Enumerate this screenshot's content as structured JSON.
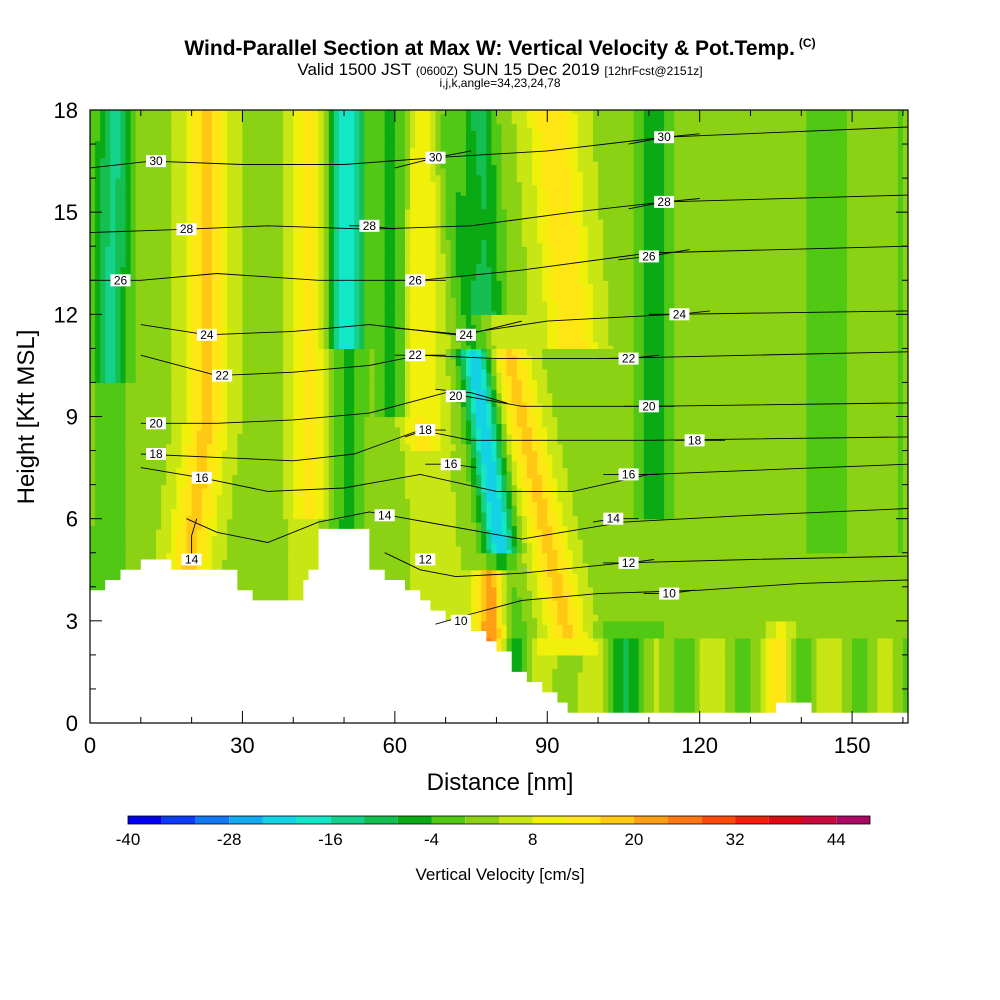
{
  "header": {
    "title": "Wind-Parallel Section at Max W: Vertical Velocity & Pot.Temp.",
    "copyright": "(C)",
    "valid_pre": "Valid 1500 JST",
    "valid_utc": "(0600Z)",
    "valid_date": "SUN 15 Dec 2019",
    "forecast": "[12hrFcst@2151z]",
    "section_info": "i,j,k,angle=34,23,24,78"
  },
  "chart_data": {
    "type": "heatmap",
    "xlabel": "Distance [nm]",
    "ylabel": "Height [Kft MSL]",
    "xlim": [
      0,
      161
    ],
    "ylim": [
      0,
      18
    ],
    "xticks": [
      0,
      30,
      60,
      90,
      120,
      150
    ],
    "yticks": [
      0,
      3,
      6,
      9,
      12,
      15,
      18
    ],
    "colorbar": {
      "label": "Vertical Velocity [cm/s]",
      "min": -40,
      "max": 48,
      "step": 4,
      "tick_labels": [
        -40,
        -28,
        -16,
        -4,
        8,
        20,
        32,
        44
      ],
      "colors": [
        "#0000ee",
        "#0a3cf5",
        "#1478f5",
        "#14aaf0",
        "#14d2e6",
        "#14e6c8",
        "#14d28c",
        "#14be50",
        "#0aaa14",
        "#50c814",
        "#8cd214",
        "#c8e614",
        "#f0f00a",
        "#ffe614",
        "#ffc814",
        "#ffa014",
        "#ff7814",
        "#ff4b0a",
        "#f01e0a",
        "#dc0a14",
        "#c80a3c",
        "#aa0a64",
        "#8c0a82"
      ]
    },
    "terrain_kft": [
      [
        0,
        3.9
      ],
      [
        3,
        3.9
      ],
      [
        3,
        4.2
      ],
      [
        6,
        4.2
      ],
      [
        6,
        4.5
      ],
      [
        10,
        4.5
      ],
      [
        10,
        4.8
      ],
      [
        16,
        4.8
      ],
      [
        16,
        4.5
      ],
      [
        29,
        4.5
      ],
      [
        29,
        3.9
      ],
      [
        32,
        3.9
      ],
      [
        32,
        3.6
      ],
      [
        42,
        3.6
      ],
      [
        42,
        4.2
      ],
      [
        43,
        4.2
      ],
      [
        43,
        4.5
      ],
      [
        45,
        4.5
      ],
      [
        45,
        5.7
      ],
      [
        55,
        5.7
      ],
      [
        55,
        4.5
      ],
      [
        58,
        4.5
      ],
      [
        58,
        4.2
      ],
      [
        62,
        4.2
      ],
      [
        62,
        3.9
      ],
      [
        65,
        3.9
      ],
      [
        65,
        3.6
      ],
      [
        67,
        3.6
      ],
      [
        67,
        3.3
      ],
      [
        70,
        3.3
      ],
      [
        70,
        3.0
      ],
      [
        75,
        3.0
      ],
      [
        75,
        2.7
      ],
      [
        78,
        2.7
      ],
      [
        78,
        2.4
      ],
      [
        80,
        2.4
      ],
      [
        80,
        2.1
      ],
      [
        83,
        2.1
      ],
      [
        83,
        1.5
      ],
      [
        86,
        1.5
      ],
      [
        86,
        1.2
      ],
      [
        89,
        1.2
      ],
      [
        89,
        0.9
      ],
      [
        92,
        0.9
      ],
      [
        92,
        0.6
      ],
      [
        94,
        0.6
      ],
      [
        94,
        0.3
      ],
      [
        135,
        0.3
      ],
      [
        135,
        0.6
      ],
      [
        142,
        0.6
      ],
      [
        142,
        0.3
      ],
      [
        161,
        0.3
      ]
    ],
    "theta_contours": [
      {
        "label": "10",
        "points": [
          [
            68,
            2.9
          ],
          [
            75,
            3.2
          ],
          [
            85,
            3.6
          ],
          [
            100,
            3.8
          ],
          [
            120,
            3.9
          ],
          [
            140,
            4.1
          ],
          [
            161,
            4.2
          ]
        ],
        "label_at": [
          73,
          3.0
        ]
      },
      {
        "label": "12",
        "points": [
          [
            58,
            5.0
          ],
          [
            65,
            4.5
          ],
          [
            72,
            4.3
          ],
          [
            85,
            4.4
          ],
          [
            105,
            4.7
          ],
          [
            130,
            4.8
          ],
          [
            161,
            4.9
          ]
        ],
        "label_at": [
          66,
          4.8
        ]
      },
      {
        "label": "14",
        "points": [
          [
            19,
            6.0
          ],
          [
            25,
            5.6
          ],
          [
            35,
            5.3
          ],
          [
            45,
            5.9
          ],
          [
            55,
            6.2
          ],
          [
            70,
            5.8
          ],
          [
            85,
            5.4
          ],
          [
            105,
            5.9
          ],
          [
            130,
            6.1
          ],
          [
            161,
            6.3
          ]
        ],
        "label_at": [
          58,
          6.1
        ]
      },
      {
        "label": "14",
        "points": [
          [
            20,
            4.8
          ],
          [
            20,
            5.5
          ],
          [
            21,
            6.0
          ]
        ],
        "label_at": [
          20,
          4.8
        ]
      },
      {
        "label": "16",
        "points": [
          [
            10,
            7.5
          ],
          [
            22,
            7.2
          ],
          [
            35,
            6.8
          ],
          [
            50,
            6.9
          ],
          [
            65,
            7.3
          ],
          [
            80,
            6.8
          ],
          [
            95,
            6.8
          ],
          [
            110,
            7.3
          ],
          [
            161,
            7.6
          ]
        ],
        "label_at": [
          22,
          7.2
        ]
      },
      {
        "label": "18",
        "points": [
          [
            10,
            7.9
          ],
          [
            25,
            7.8
          ],
          [
            40,
            7.7
          ],
          [
            52,
            7.9
          ],
          [
            65,
            8.6
          ],
          [
            75,
            8.3
          ],
          [
            90,
            8.3
          ],
          [
            110,
            8.3
          ],
          [
            161,
            8.4
          ]
        ],
        "label_at": [
          13,
          7.9
        ]
      },
      {
        "label": "20",
        "points": [
          [
            10,
            8.8
          ],
          [
            25,
            8.8
          ],
          [
            40,
            8.9
          ],
          [
            55,
            9.1
          ],
          [
            70,
            9.7
          ],
          [
            85,
            9.3
          ],
          [
            110,
            9.3
          ],
          [
            161,
            9.4
          ]
        ],
        "label_at": [
          13,
          8.8
        ]
      },
      {
        "label": "22",
        "points": [
          [
            10,
            10.8
          ],
          [
            25,
            10.2
          ],
          [
            40,
            10.3
          ],
          [
            55,
            10.5
          ],
          [
            65,
            10.8
          ],
          [
            80,
            10.7
          ],
          [
            100,
            10.7
          ],
          [
            161,
            10.9
          ]
        ],
        "label_at": [
          26,
          10.2
        ]
      },
      {
        "label": "24",
        "points": [
          [
            10,
            11.7
          ],
          [
            23,
            11.4
          ],
          [
            40,
            11.5
          ],
          [
            55,
            11.7
          ],
          [
            72,
            11.4
          ],
          [
            90,
            11.8
          ],
          [
            115,
            12.0
          ],
          [
            161,
            12.1
          ]
        ],
        "label_at": [
          23,
          11.4
        ]
      },
      {
        "label": "26",
        "points": [
          [
            0,
            13.0
          ],
          [
            10,
            13.0
          ],
          [
            25,
            13.2
          ],
          [
            45,
            13.0
          ],
          [
            65,
            13.0
          ],
          [
            85,
            13.3
          ],
          [
            110,
            13.8
          ],
          [
            161,
            14.0
          ]
        ],
        "label_at": [
          6,
          13.0
        ]
      },
      {
        "label": "28",
        "points": [
          [
            0,
            14.4
          ],
          [
            19,
            14.5
          ],
          [
            35,
            14.6
          ],
          [
            55,
            14.5
          ],
          [
            75,
            14.6
          ],
          [
            95,
            15.0
          ],
          [
            113,
            15.3
          ],
          [
            161,
            15.5
          ]
        ],
        "label_at": [
          19,
          14.5
        ]
      },
      {
        "label": "30",
        "points": [
          [
            0,
            16.3
          ],
          [
            12,
            16.5
          ],
          [
            30,
            16.4
          ],
          [
            50,
            16.4
          ],
          [
            68,
            16.6
          ],
          [
            90,
            16.8
          ],
          [
            113,
            17.2
          ],
          [
            161,
            17.5
          ]
        ],
        "label_at": [
          13,
          16.5
        ]
      },
      {
        "label": "30",
        "points": [
          [
            60,
            16.3
          ],
          [
            68,
            16.6
          ],
          [
            75,
            16.8
          ]
        ],
        "label_at": [
          68,
          16.6
        ]
      },
      {
        "label": "24",
        "points": [
          [
            60,
            11.6
          ],
          [
            74,
            11.4
          ],
          [
            85,
            11.8
          ]
        ],
        "label_at": [
          74,
          11.4
        ]
      },
      {
        "label": "20",
        "points": [
          [
            68,
            9.8
          ],
          [
            75,
            9.7
          ],
          [
            82,
            9.4
          ]
        ],
        "label_at": [
          72,
          9.6
        ]
      },
      {
        "label": "26",
        "points": [
          [
            60,
            13.0
          ],
          [
            64,
            13.0
          ],
          [
            70,
            13.0
          ]
        ],
        "label_at": [
          64,
          13.0
        ]
      },
      {
        "label": "28",
        "points": [
          [
            51,
            14.6
          ],
          [
            55,
            14.6
          ],
          [
            60,
            14.5
          ]
        ],
        "label_at": [
          55,
          14.6
        ]
      },
      {
        "label": "22",
        "points": [
          [
            60,
            10.8
          ],
          [
            64,
            10.8
          ],
          [
            70,
            10.8
          ]
        ],
        "label_at": [
          64,
          10.8
        ]
      },
      {
        "label": "18",
        "points": [
          [
            62,
            8.4
          ],
          [
            66,
            8.6
          ],
          [
            70,
            8.6
          ]
        ],
        "label_at": [
          66,
          8.6
        ]
      },
      {
        "label": "16",
        "points": [
          [
            66,
            7.6
          ],
          [
            71,
            7.6
          ],
          [
            76,
            7.5
          ]
        ],
        "label_at": [
          71,
          7.6
        ]
      },
      {
        "label": "30",
        "points": [
          [
            106,
            17.0
          ],
          [
            113,
            17.2
          ],
          [
            120,
            17.3
          ]
        ],
        "label_at": [
          113,
          17.2
        ]
      },
      {
        "label": "28",
        "points": [
          [
            106,
            15.1
          ],
          [
            113,
            15.3
          ],
          [
            120,
            15.4
          ]
        ],
        "label_at": [
          113,
          15.3
        ]
      },
      {
        "label": "26",
        "points": [
          [
            104,
            13.6
          ],
          [
            110,
            13.7
          ],
          [
            118,
            13.9
          ]
        ],
        "label_at": [
          110,
          13.7
        ]
      },
      {
        "label": "24",
        "points": [
          [
            110,
            12.0
          ],
          [
            116,
            12.0
          ],
          [
            122,
            12.1
          ]
        ],
        "label_at": [
          116,
          12.0
        ]
      },
      {
        "label": "22",
        "points": [
          [
            100,
            10.7
          ],
          [
            106,
            10.7
          ],
          [
            112,
            10.8
          ]
        ],
        "label_at": [
          106,
          10.7
        ]
      },
      {
        "label": "20",
        "points": [
          [
            105,
            9.3
          ],
          [
            110,
            9.3
          ],
          [
            115,
            9.3
          ]
        ],
        "label_at": [
          110,
          9.3
        ]
      },
      {
        "label": "18",
        "points": [
          [
            115,
            8.3
          ],
          [
            119,
            8.3
          ],
          [
            125,
            8.3
          ]
        ],
        "label_at": [
          119,
          8.3
        ]
      },
      {
        "label": "16",
        "points": [
          [
            101,
            7.3
          ],
          [
            106,
            7.3
          ],
          [
            112,
            7.3
          ]
        ],
        "label_at": [
          106,
          7.3
        ]
      },
      {
        "label": "14",
        "points": [
          [
            99,
            5.9
          ],
          [
            103,
            6.0
          ],
          [
            108,
            6.0
          ]
        ],
        "label_at": [
          103,
          6.0
        ]
      },
      {
        "label": "12",
        "points": [
          [
            101,
            4.7
          ],
          [
            106,
            4.7
          ],
          [
            111,
            4.8
          ]
        ],
        "label_at": [
          106,
          4.7
        ]
      },
      {
        "label": "10",
        "points": [
          [
            109,
            3.8
          ],
          [
            114,
            3.8
          ],
          [
            119,
            3.9
          ]
        ],
        "label_at": [
          114,
          3.8
        ]
      }
    ]
  }
}
